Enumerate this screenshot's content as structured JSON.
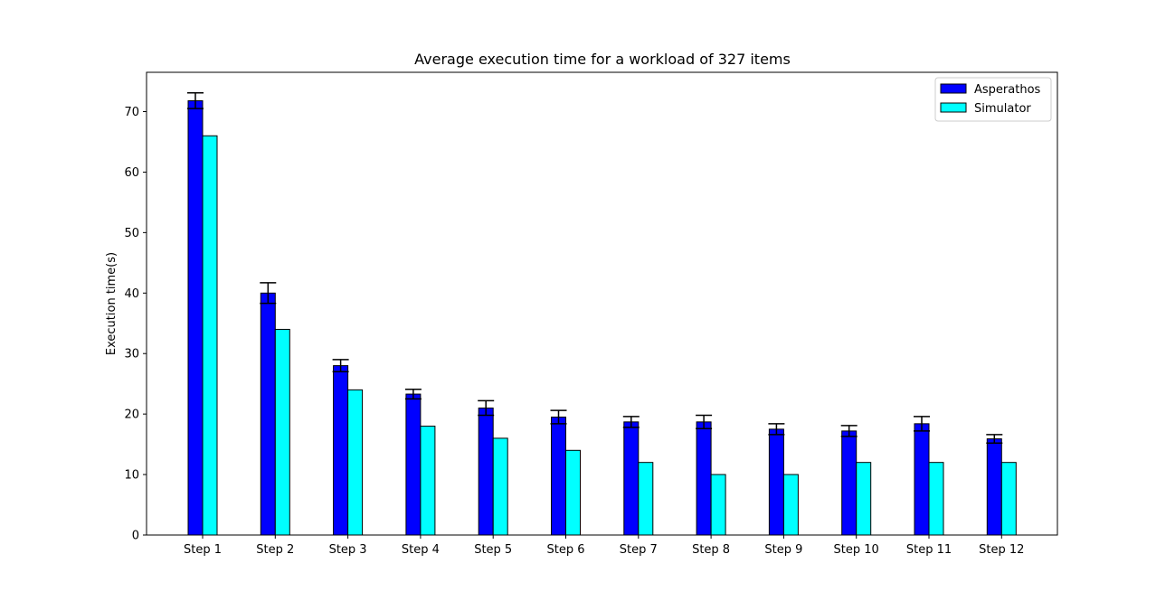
{
  "chart_data": {
    "type": "bar",
    "title": "Average execution time for a workload of 327 items",
    "xlabel": "",
    "ylabel": "Execution time(s)",
    "ylim": [
      0,
      76.5
    ],
    "yticks": [
      0,
      10,
      20,
      30,
      40,
      50,
      60,
      70
    ],
    "grid": false,
    "legend_position": "top-right",
    "categories": [
      "Step 1",
      "Step 2",
      "Step 3",
      "Step 4",
      "Step 5",
      "Step 6",
      "Step 7",
      "Step 8",
      "Step 9",
      "Step 10",
      "Step 11",
      "Step 12"
    ],
    "series": [
      {
        "name": "Asperathos",
        "color": "#0000ff",
        "values": [
          71.8,
          40.0,
          28.0,
          23.3,
          21.0,
          19.5,
          18.7,
          18.7,
          17.5,
          17.2,
          18.4,
          15.9
        ],
        "error": [
          1.3,
          1.7,
          1.0,
          0.8,
          1.2,
          1.1,
          0.9,
          1.1,
          0.9,
          0.9,
          1.2,
          0.7
        ]
      },
      {
        "name": "Simulator",
        "color": "#00ffff",
        "values": [
          66,
          34,
          24,
          18,
          16,
          14,
          12,
          10,
          10,
          12,
          12,
          12
        ]
      }
    ]
  }
}
